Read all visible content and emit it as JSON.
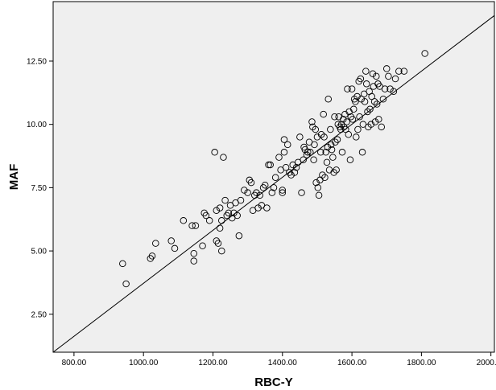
{
  "chart_data": {
    "type": "scatter",
    "xlabel": "RBC-Y",
    "ylabel": "MAF",
    "xlim": [
      740,
      2010
    ],
    "ylim": [
      1.0,
      14.85
    ],
    "x_ticks": [
      "800.00",
      "1000.00",
      "1200.00",
      "1400.00",
      "1600.00",
      "1800.00",
      "2000.00"
    ],
    "y_ticks": [
      "2.50",
      "5.00",
      "7.50",
      "10.00",
      "12.50"
    ],
    "fit_line": {
      "x": [
        740,
        2010
      ],
      "y": [
        1.0,
        14.3
      ]
    },
    "grid": false,
    "plot_background": "#efefef",
    "marker_style": "hollow-circle",
    "series": [
      {
        "points": [
          [
            940,
            4.5
          ],
          [
            950,
            3.7
          ],
          [
            1020,
            4.7
          ],
          [
            1025,
            4.8
          ],
          [
            1035,
            5.3
          ],
          [
            1080,
            5.4
          ],
          [
            1090,
            5.1
          ],
          [
            1115,
            6.2
          ],
          [
            1140,
            6.0
          ],
          [
            1145,
            4.9
          ],
          [
            1145,
            4.6
          ],
          [
            1150,
            6.0
          ],
          [
            1175,
            6.5
          ],
          [
            1180,
            6.4
          ],
          [
            1170,
            5.2
          ],
          [
            1190,
            6.2
          ],
          [
            1205,
            8.9
          ],
          [
            1210,
            5.4
          ],
          [
            1210,
            6.6
          ],
          [
            1215,
            5.3
          ],
          [
            1220,
            5.9
          ],
          [
            1220,
            6.7
          ],
          [
            1225,
            5.0
          ],
          [
            1225,
            6.2
          ],
          [
            1230,
            8.7
          ],
          [
            1235,
            7.0
          ],
          [
            1240,
            6.4
          ],
          [
            1245,
            6.5
          ],
          [
            1250,
            6.8
          ],
          [
            1255,
            6.3
          ],
          [
            1260,
            6.5
          ],
          [
            1265,
            6.9
          ],
          [
            1270,
            6.4
          ],
          [
            1275,
            5.6
          ],
          [
            1280,
            7.0
          ],
          [
            1290,
            7.4
          ],
          [
            1300,
            7.3
          ],
          [
            1305,
            7.8
          ],
          [
            1310,
            7.7
          ],
          [
            1315,
            6.6
          ],
          [
            1320,
            7.2
          ],
          [
            1325,
            7.3
          ],
          [
            1330,
            6.7
          ],
          [
            1335,
            7.2
          ],
          [
            1340,
            6.8
          ],
          [
            1345,
            7.5
          ],
          [
            1350,
            7.6
          ],
          [
            1355,
            6.7
          ],
          [
            1360,
            8.4
          ],
          [
            1365,
            8.4
          ],
          [
            1370,
            7.3
          ],
          [
            1375,
            7.5
          ],
          [
            1380,
            7.9
          ],
          [
            1390,
            8.7
          ],
          [
            1395,
            8.2
          ],
          [
            1400,
            7.3
          ],
          [
            1400,
            7.4
          ],
          [
            1405,
            8.9
          ],
          [
            1405,
            9.4
          ],
          [
            1410,
            8.3
          ],
          [
            1415,
            9.2
          ],
          [
            1420,
            8.1
          ],
          [
            1425,
            8.0
          ],
          [
            1430,
            8.4
          ],
          [
            1435,
            8.1
          ],
          [
            1440,
            8.3
          ],
          [
            1445,
            8.5
          ],
          [
            1450,
            9.5
          ],
          [
            1455,
            7.3
          ],
          [
            1460,
            8.6
          ],
          [
            1462,
            9.1
          ],
          [
            1465,
            9.0
          ],
          [
            1470,
            8.8
          ],
          [
            1473,
            8.9
          ],
          [
            1477,
            9.3
          ],
          [
            1480,
            8.9
          ],
          [
            1485,
            10.1
          ],
          [
            1487,
            9.9
          ],
          [
            1490,
            8.6
          ],
          [
            1492,
            9.2
          ],
          [
            1495,
            9.8
          ],
          [
            1497,
            7.7
          ],
          [
            1500,
            9.5
          ],
          [
            1502,
            7.5
          ],
          [
            1505,
            7.2
          ],
          [
            1508,
            7.8
          ],
          [
            1510,
            8.9
          ],
          [
            1512,
            9.6
          ],
          [
            1515,
            8.0
          ],
          [
            1518,
            10.4
          ],
          [
            1520,
            9.5
          ],
          [
            1522,
            7.9
          ],
          [
            1525,
            8.9
          ],
          [
            1528,
            8.5
          ],
          [
            1530,
            9.1
          ],
          [
            1532,
            11.0
          ],
          [
            1535,
            8.2
          ],
          [
            1538,
            9.8
          ],
          [
            1540,
            9.2
          ],
          [
            1542,
            9.0
          ],
          [
            1545,
            8.7
          ],
          [
            1548,
            8.1
          ],
          [
            1550,
            10.3
          ],
          [
            1552,
            9.3
          ],
          [
            1555,
            8.2
          ],
          [
            1558,
            9.4
          ],
          [
            1560,
            10.0
          ],
          [
            1562,
            10.3
          ],
          [
            1565,
            9.9
          ],
          [
            1568,
            9.8
          ],
          [
            1570,
            10.0
          ],
          [
            1572,
            8.9
          ],
          [
            1575,
            10.2
          ],
          [
            1577,
            9.9
          ],
          [
            1580,
            10.4
          ],
          [
            1582,
            9.8
          ],
          [
            1585,
            10.1
          ],
          [
            1587,
            11.4
          ],
          [
            1590,
            9.6
          ],
          [
            1592,
            10.5
          ],
          [
            1595,
            8.6
          ],
          [
            1597,
            10.3
          ],
          [
            1600,
            11.4
          ],
          [
            1602,
            10.2
          ],
          [
            1605,
            10.6
          ],
          [
            1607,
            11.0
          ],
          [
            1610,
            10.9
          ],
          [
            1612,
            9.5
          ],
          [
            1615,
            11.1
          ],
          [
            1617,
            9.8
          ],
          [
            1620,
            11.7
          ],
          [
            1622,
            10.3
          ],
          [
            1625,
            11.8
          ],
          [
            1627,
            11.0
          ],
          [
            1630,
            8.9
          ],
          [
            1632,
            10.0
          ],
          [
            1635,
            11.2
          ],
          [
            1637,
            10.9
          ],
          [
            1640,
            12.1
          ],
          [
            1642,
            11.6
          ],
          [
            1645,
            10.5
          ],
          [
            1647,
            9.9
          ],
          [
            1650,
            11.3
          ],
          [
            1652,
            10.6
          ],
          [
            1655,
            10.0
          ],
          [
            1657,
            11.1
          ],
          [
            1660,
            12.0
          ],
          [
            1662,
            11.5
          ],
          [
            1665,
            10.9
          ],
          [
            1667,
            10.1
          ],
          [
            1670,
            11.9
          ],
          [
            1672,
            10.8
          ],
          [
            1675,
            11.6
          ],
          [
            1677,
            10.2
          ],
          [
            1680,
            11.5
          ],
          [
            1685,
            9.9
          ],
          [
            1690,
            11.0
          ],
          [
            1695,
            11.4
          ],
          [
            1700,
            12.2
          ],
          [
            1705,
            11.9
          ],
          [
            1710,
            11.4
          ],
          [
            1720,
            11.3
          ],
          [
            1725,
            11.8
          ],
          [
            1735,
            12.1
          ],
          [
            1750,
            12.1
          ],
          [
            1810,
            12.8
          ]
        ]
      }
    ]
  }
}
